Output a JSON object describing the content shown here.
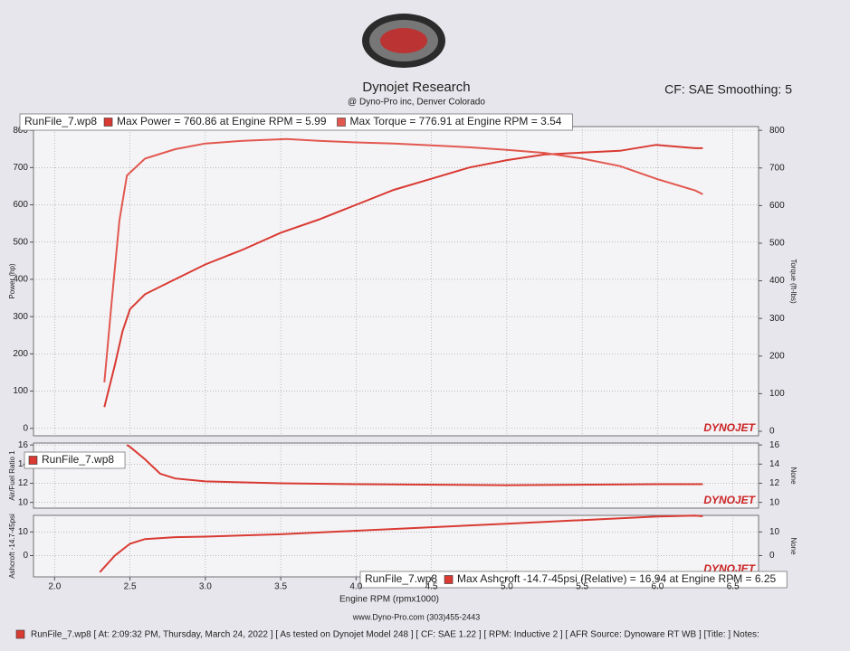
{
  "header": {
    "title": "Dynojet Research",
    "subtitle": "@ Dyno-Pro inc, Denver Colorado",
    "settings": "CF: SAE Smoothing: 5",
    "brand": "DYNOJET"
  },
  "footer": {
    "website": "www.Dyno-Pro.com (303)455-2443",
    "run_info": "RunFile_7.wp8 [ At: 2:09:32 PM, Thursday, March 24, 2022 ] [ As tested on Dynojet Model 248 ] [ CF: SAE 1.22 ] [ RPM: Inductive 2 ] [ AFR Source: Dynoware RT WB ] [Title: ] Notes:"
  },
  "chart_data": [
    {
      "type": "line",
      "legend_title": "RunFile_7.wp8",
      "ylabel": "Power (hp)",
      "y2label": "Torque (ft-lbs)",
      "xlim": [
        1.86,
        6.67
      ],
      "ylim": [
        -20,
        810
      ],
      "yticks": [
        0,
        100,
        200,
        300,
        400,
        500,
        600,
        700,
        800
      ],
      "y2lim": [
        -12,
        810
      ],
      "y2ticks": [
        0,
        100,
        200,
        300,
        400,
        500,
        600,
        700,
        800
      ],
      "grid": true,
      "series": [
        {
          "name": "Max Power = 760.86 at Engine RPM = 5.99",
          "color": "#d93a32",
          "axis": "y",
          "x": [
            2.33,
            2.4,
            2.45,
            2.5,
            2.6,
            2.8,
            3.0,
            3.25,
            3.5,
            3.75,
            4.0,
            4.25,
            4.5,
            4.75,
            5.0,
            5.25,
            5.5,
            5.75,
            5.99,
            6.25,
            6.3
          ],
          "values": [
            57,
            170,
            260,
            320,
            360,
            400,
            440,
            480,
            525,
            560,
            600,
            640,
            670,
            700,
            720,
            735,
            740,
            745,
            760.86,
            752,
            752
          ]
        },
        {
          "name": "Max Torque = 776.91 at Engine RPM = 3.54",
          "color": "#e2584f",
          "axis": "y2",
          "x": [
            2.33,
            2.38,
            2.43,
            2.48,
            2.6,
            2.8,
            3.0,
            3.25,
            3.54,
            3.75,
            4.0,
            4.25,
            4.5,
            4.75,
            5.0,
            5.25,
            5.5,
            5.75,
            6.0,
            6.25,
            6.3
          ],
          "values": [
            130,
            350,
            560,
            680,
            725,
            750,
            765,
            772,
            776.91,
            772,
            768,
            765,
            760,
            755,
            748,
            740,
            725,
            705,
            670,
            640,
            630
          ]
        }
      ]
    },
    {
      "type": "line",
      "ylabel": "Air/Fuel Ratio 1",
      "y2label": "None",
      "xlim": [
        1.86,
        6.67
      ],
      "ylim": [
        9.4,
        16.2
      ],
      "yticks": [
        10,
        12,
        14,
        16
      ],
      "y2lim": [
        9.4,
        16.2
      ],
      "y2ticks": [
        10,
        12,
        14,
        16
      ],
      "grid": true,
      "series": [
        {
          "name": "RunFile_7.wp8",
          "color": "#d93a32",
          "axis": "y",
          "x": [
            2.48,
            2.5,
            2.6,
            2.7,
            2.8,
            3.0,
            3.5,
            4.0,
            5.0,
            6.0,
            6.3
          ],
          "values": [
            16,
            15.8,
            14.5,
            13,
            12.5,
            12.2,
            12.0,
            11.9,
            11.8,
            11.9,
            11.9
          ]
        }
      ]
    },
    {
      "type": "line",
      "legend_title": "RunFile_7.wp8",
      "ylabel": "Ashcroft -14.7-45psi",
      "y2label": "None",
      "xlabel": "Engine RPM (rpmx1000)",
      "xlim": [
        1.86,
        6.67
      ],
      "xticks": [
        {
          "value": 2,
          "label": "2.0"
        },
        2.5,
        {
          "value": 3,
          "label": "3.0"
        },
        3.5,
        {
          "value": 4,
          "label": "4.0"
        },
        4.5,
        {
          "value": 5,
          "label": "5.0"
        },
        5.5,
        {
          "value": 6,
          "label": "6.0"
        },
        6.5
      ],
      "ylim": [
        -9,
        17
      ],
      "yticks": [
        0,
        10
      ],
      "y2lim": [
        -9,
        17
      ],
      "y2ticks": [
        0,
        10
      ],
      "grid": true,
      "series": [
        {
          "name": "Max Ashcroft -14.7-45psi (Relative) = 16.94 at Engine RPM = 6.25",
          "color": "#d93a32",
          "axis": "y",
          "x": [
            2.3,
            2.4,
            2.5,
            2.6,
            2.8,
            3.0,
            3.5,
            4.0,
            4.5,
            5.0,
            5.5,
            6.0,
            6.25,
            6.3
          ],
          "values": [
            -7,
            0,
            5,
            7,
            7.8,
            8,
            9,
            10.5,
            12,
            13.5,
            15,
            16.5,
            16.94,
            16.6
          ]
        }
      ]
    }
  ]
}
